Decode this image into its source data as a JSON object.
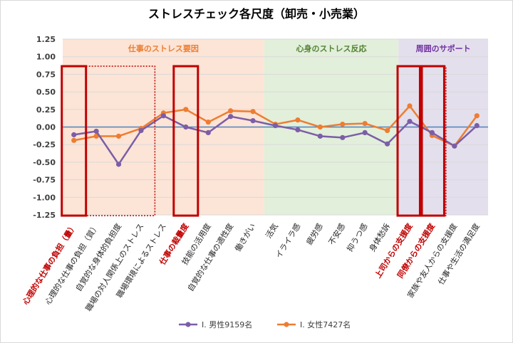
{
  "chart_data": {
    "type": "line",
    "title": "ストレスチェック各尺度（卸売・小売業）",
    "ylim": [
      -1.25,
      1.25
    ],
    "yticks": [
      "1.25",
      "1.00",
      "0.75",
      "0.50",
      "0.25",
      "0.00",
      "-0.25",
      "-0.50",
      "-0.75",
      "-1.00",
      "-1.25"
    ],
    "categories": [
      "心理的な仕事の負担（量）",
      "心理的な仕事の負担（質）",
      "自覚的な身体的負担度",
      "職場の対人関係上のストレス",
      "職場環境によるストレス",
      "仕事の裁量度",
      "技能の活用度",
      "自覚的な仕事の適性度",
      "働きがい",
      "活気",
      "イライラ感",
      "疲労感",
      "不安感",
      "抑うつ感",
      "身体愁訴",
      "上司からの支援度",
      "同僚からの支援度",
      "家族や友人からの支援度",
      "仕事や生活の満足度"
    ],
    "highlighted_categories": [
      0,
      5,
      15,
      16
    ],
    "series": [
      {
        "name": "I. 男性9159名",
        "color": "#7b5ea7",
        "values": [
          -0.11,
          -0.06,
          -0.53,
          -0.05,
          0.16,
          0.0,
          -0.08,
          0.15,
          0.09,
          0.02,
          -0.04,
          -0.13,
          -0.15,
          -0.08,
          -0.24,
          0.08,
          -0.08,
          -0.27,
          0.02
        ]
      },
      {
        "name": "I. 女性7427名",
        "color": "#ed7d31",
        "values": [
          -0.19,
          -0.13,
          -0.13,
          -0.02,
          0.2,
          0.25,
          0.07,
          0.23,
          0.22,
          0.04,
          0.1,
          0.0,
          0.04,
          0.05,
          -0.05,
          0.3,
          -0.12,
          -0.27,
          0.16
        ]
      }
    ],
    "regions": [
      {
        "label": "仕事のストレス要因",
        "from": 0,
        "to": 8,
        "color": "#fce4d6",
        "label_color": "#ed7d31"
      },
      {
        "label": "心身のストレス反応",
        "from": 9,
        "to": 14,
        "color": "#e2efda",
        "label_color": "#548235"
      },
      {
        "label": "周囲のサポート",
        "from": 15,
        "to": 18,
        "color": "#e4dfec",
        "label_color": "#7030a0"
      }
    ],
    "grid": true,
    "legend_position": "bottom",
    "highlight_color": "#c00000",
    "zero_line_color": "#4f81bd"
  }
}
